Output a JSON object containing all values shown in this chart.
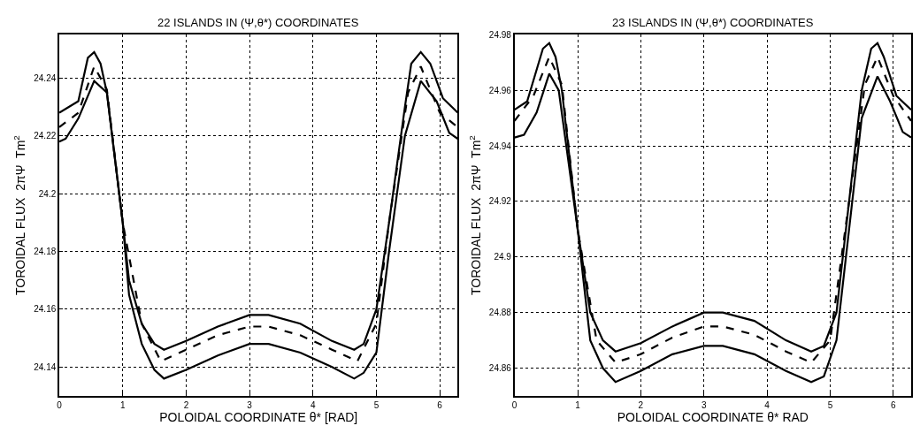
{
  "chart_data": [
    {
      "type": "line",
      "title": "22 ISLANDS IN (Ψ,θ*) COORDINATES",
      "xlabel": "POLOIDAL COORDINATE θ* [RAD]",
      "ylabel": "TOROIDAL FLUX  2πΨ  Tm$^{2}$",
      "xlim": [
        0,
        6.283
      ],
      "ylim": [
        24.13,
        24.255
      ],
      "xticks": [
        0,
        1,
        2,
        3,
        4,
        5,
        6
      ],
      "yticks": [
        24.14,
        24.16,
        24.18,
        24.2,
        24.22,
        24.24
      ],
      "grid": true,
      "series": [
        {
          "color": "#000000",
          "line_style": "solid",
          "x": [
            0,
            0.3,
            0.45,
            0.55,
            0.65,
            0.75,
            1.0,
            1.1,
            1.3,
            1.5,
            1.65,
            2.0,
            2.5,
            3.0,
            3.3,
            3.8,
            4.3,
            4.65,
            4.8,
            5.0,
            5.2,
            5.45,
            5.55,
            5.7,
            5.85,
            6.05,
            6.283
          ],
          "values": [
            24.228,
            24.232,
            24.247,
            24.249,
            24.245,
            24.235,
            24.19,
            24.17,
            24.155,
            24.148,
            24.146,
            24.149,
            24.154,
            24.158,
            24.158,
            24.155,
            24.149,
            24.146,
            24.148,
            24.16,
            24.19,
            24.23,
            24.245,
            24.249,
            24.245,
            24.233,
            24.228
          ]
        },
        {
          "color": "#000000",
          "line_style": "solid",
          "x": [
            0,
            0.1,
            0.3,
            0.55,
            0.75,
            1.0,
            1.1,
            1.3,
            1.5,
            1.65,
            2.0,
            2.5,
            3.0,
            3.3,
            3.8,
            4.3,
            4.65,
            4.8,
            5.0,
            5.2,
            5.45,
            5.7,
            5.95,
            6.15,
            6.283
          ],
          "values": [
            24.218,
            24.219,
            24.226,
            24.239,
            24.235,
            24.19,
            24.165,
            24.148,
            24.139,
            24.136,
            24.139,
            24.144,
            24.148,
            24.148,
            24.145,
            24.14,
            24.136,
            24.138,
            24.145,
            24.18,
            24.22,
            24.239,
            24.232,
            24.221,
            24.219
          ]
        },
        {
          "color": "#000000",
          "line_style": "dashed",
          "x": [
            0,
            0.3,
            0.55,
            0.75,
            1.0,
            1.3,
            1.6,
            2.0,
            2.5,
            3.0,
            3.3,
            3.8,
            4.3,
            4.7,
            5.0,
            5.2,
            5.5,
            5.7,
            6.0,
            6.283
          ],
          "values": [
            24.223,
            24.228,
            24.244,
            24.236,
            24.19,
            24.155,
            24.142,
            24.146,
            24.151,
            24.154,
            24.154,
            24.151,
            24.146,
            24.142,
            24.155,
            24.19,
            24.235,
            24.244,
            24.228,
            24.223
          ]
        }
      ]
    },
    {
      "type": "line",
      "title": "23 ISLANDS IN (Ψ,θ*) COORDINATES",
      "xlabel": "POLOIDAL COORDINATE θ* RAD",
      "ylabel": "TOROIDAL FLUX  2πΨ  Tm$^{2}$",
      "xlim": [
        0,
        6.283
      ],
      "ylim": [
        24.85,
        24.98
      ],
      "xticks": [
        0,
        1,
        2,
        3,
        4,
        5,
        6
      ],
      "yticks": [
        24.86,
        24.88,
        24.9,
        24.92,
        24.94,
        24.96,
        24.98
      ],
      "grid": true,
      "series": [
        {
          "color": "#000000",
          "line_style": "solid",
          "x": [
            0,
            0.2,
            0.45,
            0.55,
            0.65,
            0.75,
            1.0,
            1.2,
            1.4,
            1.6,
            2.0,
            2.5,
            3.0,
            3.3,
            3.8,
            4.3,
            4.7,
            4.9,
            5.1,
            5.3,
            5.5,
            5.65,
            5.75,
            5.85,
            6.05,
            6.283
          ],
          "values": [
            24.953,
            24.956,
            24.975,
            24.977,
            24.972,
            24.96,
            24.91,
            24.88,
            24.87,
            24.866,
            24.869,
            24.875,
            24.88,
            24.88,
            24.877,
            24.87,
            24.866,
            24.868,
            24.88,
            24.92,
            24.96,
            24.975,
            24.977,
            24.972,
            24.958,
            24.953
          ]
        },
        {
          "color": "#000000",
          "line_style": "solid",
          "x": [
            0,
            0.15,
            0.35,
            0.55,
            0.7,
            1.0,
            1.2,
            1.4,
            1.6,
            2.0,
            2.5,
            3.0,
            3.3,
            3.8,
            4.3,
            4.7,
            4.9,
            5.1,
            5.3,
            5.5,
            5.75,
            5.95,
            6.15,
            6.283
          ],
          "values": [
            24.943,
            24.944,
            24.952,
            24.966,
            24.96,
            24.91,
            24.87,
            24.86,
            24.855,
            24.859,
            24.865,
            24.868,
            24.868,
            24.865,
            24.859,
            24.855,
            24.857,
            24.87,
            24.91,
            24.95,
            24.965,
            24.956,
            24.945,
            24.943
          ]
        },
        {
          "color": "#000000",
          "line_style": "dashed",
          "x": [
            0,
            0.3,
            0.55,
            0.75,
            1.0,
            1.3,
            1.6,
            2.0,
            2.5,
            3.0,
            3.3,
            3.8,
            4.3,
            4.7,
            5.0,
            5.3,
            5.55,
            5.75,
            6.0,
            6.283
          ],
          "values": [
            24.949,
            24.958,
            24.972,
            24.962,
            24.91,
            24.87,
            24.862,
            24.865,
            24.871,
            24.875,
            24.875,
            24.872,
            24.866,
            24.862,
            24.87,
            24.92,
            24.962,
            24.972,
            24.958,
            24.949
          ]
        }
      ]
    }
  ]
}
